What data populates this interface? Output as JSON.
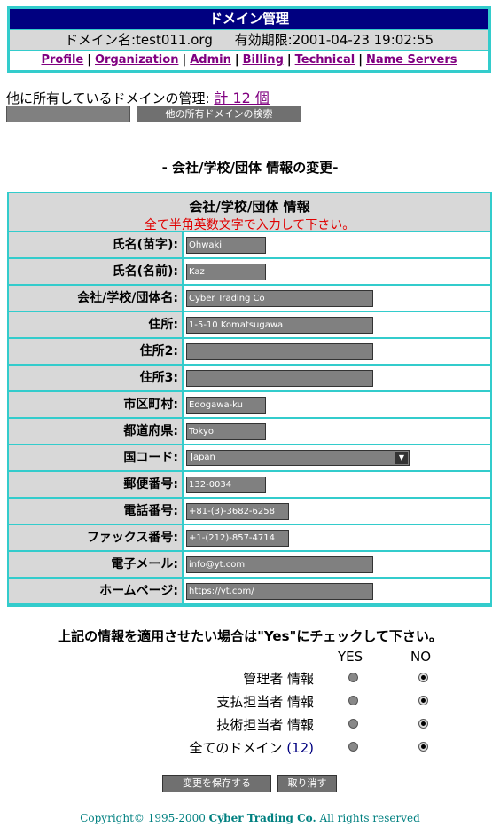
{
  "header": {
    "title": "ドメイン管理",
    "domain": "ドメイン名:test011.org",
    "expiry": "有効期限:2001-04-23 19:02:55",
    "nav": [
      "Profile",
      "Organization",
      "Admin",
      "Billing",
      "Technical",
      "Name Servers"
    ]
  },
  "owned": {
    "text": "他に所有しているドメインの管理:",
    "link": "計 12 個",
    "search_value": "",
    "search_button": "他の所有ドメインの検索"
  },
  "section_title": "- 会社/学校/団体 情報の変更-",
  "form": {
    "header": "会社/学校/団体 情報",
    "note": "全て半角英数文字で入力して下さい。",
    "fields": [
      {
        "label": "氏名(苗字):",
        "value": "Ohwaki"
      },
      {
        "label": "氏名(名前):",
        "value": "Kaz"
      },
      {
        "label": "会社/学校/団体名:",
        "value": "Cyber Trading Co"
      },
      {
        "label": "住所:",
        "value": "1-5-10 Komatsugawa"
      },
      {
        "label": "住所2:",
        "value": ""
      },
      {
        "label": "住所3:",
        "value": ""
      },
      {
        "label": "市区町村:",
        "value": "Edogawa-ku"
      },
      {
        "label": "都道府県:",
        "value": "Tokyo"
      },
      {
        "label": "国コード:",
        "value": "Japan"
      },
      {
        "label": "郵便番号:",
        "value": "132-0034"
      },
      {
        "label": "電話番号:",
        "value": "+81-(3)-3682-6258"
      },
      {
        "label": "ファックス番号:",
        "value": "+1-(212)-857-4714"
      },
      {
        "label": "電子メール:",
        "value": "info@yt.com"
      },
      {
        "label": "ホームページ:",
        "value": "https://yt.com/"
      }
    ]
  },
  "apply": {
    "text": "上記の情報を適用させたい場合は\"Yes\"にチェックして下さい。",
    "yes": "YES",
    "no": "NO",
    "rows": [
      {
        "label": "管理者 情報",
        "count": "",
        "selected": "no"
      },
      {
        "label": "支払担当者 情報",
        "count": "",
        "selected": "no"
      },
      {
        "label": "技術担当者 情報",
        "count": "",
        "selected": "no"
      },
      {
        "label": "全てのドメイン",
        "count": "(12)",
        "selected": "no"
      }
    ]
  },
  "buttons": {
    "save": "変更を保存する",
    "cancel": "取り消す"
  },
  "footer": {
    "prefix": "Copyright© 1995-2000 ",
    "company": "Cyber Trading Co.",
    "suffix": " All rights reserved"
  }
}
